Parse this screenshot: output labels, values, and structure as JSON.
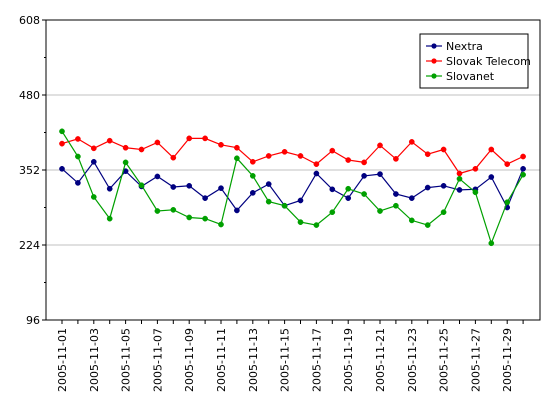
{
  "chart_data": {
    "type": "line",
    "title": "",
    "xlabel": "",
    "ylabel": "",
    "ylim": [
      96,
      608
    ],
    "y_ticks": [
      96,
      224,
      352,
      480,
      608
    ],
    "grid": true,
    "legend_position": "top-right",
    "x": [
      "2005-11-01",
      "2005-11-02",
      "2005-11-03",
      "2005-11-04",
      "2005-11-05",
      "2005-11-06",
      "2005-11-07",
      "2005-11-08",
      "2005-11-09",
      "2005-11-10",
      "2005-11-11",
      "2005-11-12",
      "2005-11-13",
      "2005-11-14",
      "2005-11-15",
      "2005-11-16",
      "2005-11-17",
      "2005-11-18",
      "2005-11-19",
      "2005-11-20",
      "2005-11-21",
      "2005-11-22",
      "2005-11-23",
      "2005-11-24",
      "2005-11-25",
      "2005-11-26",
      "2005-11-27",
      "2005-11-28",
      "2005-11-29",
      "2005-11-30"
    ],
    "x_tick_labels": [
      "2005-11-01",
      "2005-11-03",
      "2005-11-05",
      "2005-11-07",
      "2005-11-09",
      "2005-11-11",
      "2005-11-13",
      "2005-11-15",
      "2005-11-17",
      "2005-11-19",
      "2005-11-21",
      "2005-11-23",
      "2005-11-25",
      "2005-11-27",
      "2005-11-29"
    ],
    "series": [
      {
        "name": "Nextra",
        "color": "#000080",
        "values": [
          354,
          330,
          366,
          320,
          350,
          324,
          341,
          323,
          325,
          304,
          321,
          283,
          313,
          328,
          291,
          300,
          346,
          319,
          304,
          342,
          345,
          311,
          304,
          322,
          325,
          318,
          319,
          340,
          288,
          354
        ]
      },
      {
        "name": "Slovak Telecom",
        "color": "#ff0000",
        "values": [
          397,
          405,
          389,
          402,
          390,
          387,
          399,
          373,
          406,
          406,
          395,
          390,
          366,
          376,
          383,
          376,
          362,
          385,
          369,
          365,
          394,
          371,
          400,
          379,
          387,
          346,
          354,
          387,
          362,
          375
        ]
      },
      {
        "name": "Slovanet",
        "color": "#00a000",
        "values": [
          418,
          375,
          306,
          269,
          365,
          326,
          282,
          284,
          271,
          269,
          259,
          372,
          342,
          298,
          291,
          263,
          258,
          280,
          320,
          311,
          282,
          291,
          266,
          258,
          280,
          337,
          314,
          227,
          297,
          344
        ]
      }
    ]
  }
}
